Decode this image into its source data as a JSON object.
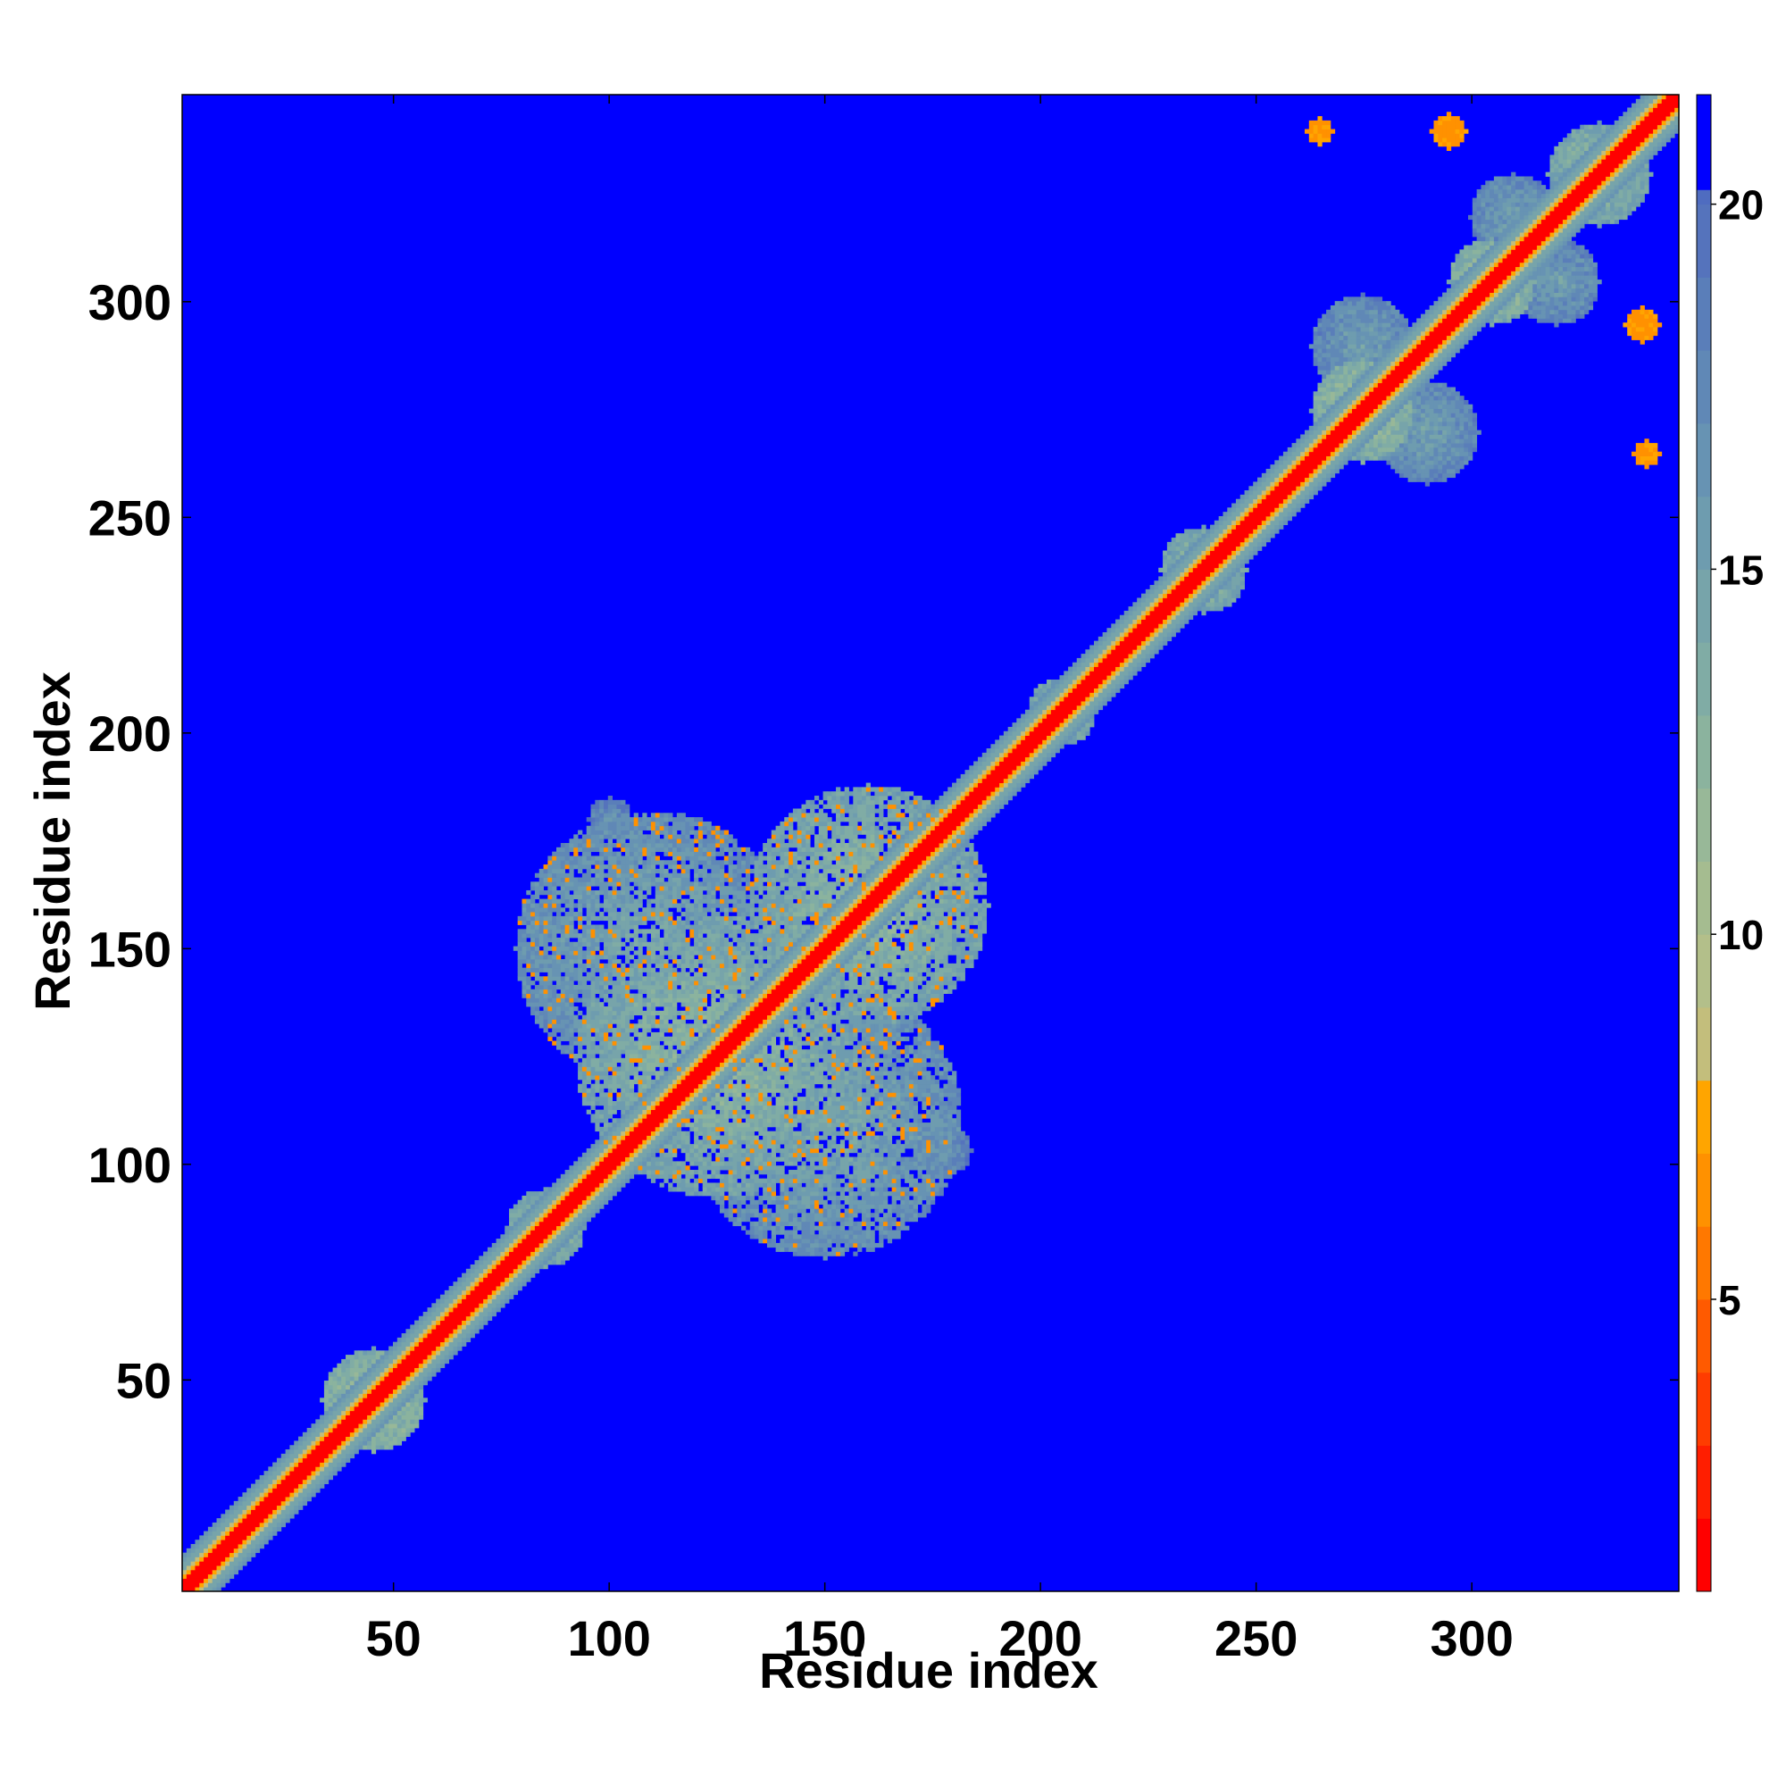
{
  "chart_data": {
    "type": "heatmap",
    "title": "",
    "xlabel": "Residue index",
    "ylabel": "Residue index",
    "xlim": [
      1,
      348
    ],
    "ylim": [
      1,
      348
    ],
    "xticks": [
      50,
      100,
      150,
      200,
      250,
      300
    ],
    "yticks": [
      50,
      100,
      150,
      200,
      250,
      300
    ],
    "grid": false,
    "colorbar": {
      "position": "right",
      "range": [
        1,
        21.5
      ],
      "ticks": [
        5,
        10,
        15,
        20
      ],
      "levels": [
        {
          "from": 1,
          "to": 2,
          "color": "#ff0000"
        },
        {
          "from": 2,
          "to": 3,
          "color": "#ff1e00"
        },
        {
          "from": 3,
          "to": 4,
          "color": "#ff3c00"
        },
        {
          "from": 4,
          "to": 5,
          "color": "#ff5a00"
        },
        {
          "from": 5,
          "to": 6,
          "color": "#ff7800"
        },
        {
          "from": 6,
          "to": 7,
          "color": "#ff9100"
        },
        {
          "from": 7,
          "to": 8,
          "color": "#ffa500"
        },
        {
          "from": 8,
          "to": 9,
          "color": "#c3be7c"
        },
        {
          "from": 9,
          "to": 10,
          "color": "#b3bf8a"
        },
        {
          "from": 10,
          "to": 11,
          "color": "#a5bc90"
        },
        {
          "from": 11,
          "to": 12,
          "color": "#98b898"
        },
        {
          "from": 12,
          "to": 13,
          "color": "#8bb39e"
        },
        {
          "from": 13,
          "to": 14,
          "color": "#80aca5"
        },
        {
          "from": 14,
          "to": 15,
          "color": "#77a4aa"
        },
        {
          "from": 15,
          "to": 16,
          "color": "#6e9caf"
        },
        {
          "from": 16,
          "to": 17,
          "color": "#6793b3"
        },
        {
          "from": 17,
          "to": 18,
          "color": "#6088b6"
        },
        {
          "from": 18,
          "to": 19,
          "color": "#5a7eb9"
        },
        {
          "from": 19,
          "to": 20,
          "color": "#5573bc"
        },
        {
          "from": 20,
          "to": 20.2,
          "color": "#4f6cc0"
        },
        {
          "from": 20.2,
          "to": 21.5,
          "color": "#0000ff"
        }
      ]
    },
    "background_value": 21,
    "diagonal": {
      "core_value": 1.5,
      "halo_value": 6,
      "core_halfwidth": 2,
      "halo_halfwidth": 4
    },
    "regions": [
      {
        "name": "diagonal-thickening",
        "center": [
          1,
          1
        ],
        "radius": 4,
        "value": 11
      },
      {
        "name": "diagonal-thickening",
        "center": [
          45,
          45
        ],
        "radius": 12,
        "value": 11
      },
      {
        "name": "diagonal-thickening",
        "center": [
          25,
          25
        ],
        "radius": 5,
        "value": 13
      },
      {
        "name": "diagonal-thickening",
        "center": [
          85,
          85
        ],
        "radius": 9,
        "value": 12
      },
      {
        "name": "globular-domain",
        "center": [
          125,
          125
        ],
        "radius": 33,
        "value": 12
      },
      {
        "name": "globular-domain",
        "center": [
          160,
          160
        ],
        "radius": 28,
        "value": 12
      },
      {
        "name": "globular-domain-offdiag",
        "center": [
          110,
          150
        ],
        "radius": 32,
        "value": 14
      },
      {
        "name": "globular-domain-offdiag",
        "center": [
          150,
          110
        ],
        "radius": 32,
        "value": 14
      },
      {
        "name": "contact-cluster",
        "center": [
          100,
          180
        ],
        "radius": 5,
        "value": 16
      },
      {
        "name": "contact-cluster",
        "center": [
          178,
          103
        ],
        "radius": 6,
        "value": 16
      },
      {
        "name": "diagonal-thickening",
        "center": [
          205,
          205
        ],
        "radius": 8,
        "value": 12
      },
      {
        "name": "diagonal-thickening",
        "center": [
          238,
          238
        ],
        "radius": 10,
        "value": 12
      },
      {
        "name": "diagonal-thickening",
        "center": [
          275,
          275
        ],
        "radius": 12,
        "value": 11
      },
      {
        "name": "diagonal-thickening",
        "center": [
          305,
          305
        ],
        "radius": 10,
        "value": 11
      },
      {
        "name": "diagonal-thickening",
        "center": [
          330,
          330
        ],
        "radius": 12,
        "value": 12
      },
      {
        "name": "cross-arm",
        "center": [
          275,
          290
        ],
        "radius": 12,
        "value": 15
      },
      {
        "name": "cross-arm",
        "center": [
          290,
          270
        ],
        "radius": 12,
        "value": 15
      },
      {
        "name": "cross-arm",
        "center": [
          310,
          320
        ],
        "radius": 10,
        "value": 15
      },
      {
        "name": "cross-arm",
        "center": [
          320,
          305
        ],
        "radius": 10,
        "value": 15
      },
      {
        "name": "long-range-contact",
        "center": [
          265,
          340
        ],
        "radius": 3,
        "value": 6
      },
      {
        "name": "long-range-contact",
        "center": [
          295,
          340
        ],
        "radius": 4,
        "value": 6
      },
      {
        "name": "long-range-contact",
        "center": [
          340,
          295
        ],
        "radius": 4,
        "value": 6
      },
      {
        "name": "long-range-contact",
        "center": [
          341,
          265
        ],
        "radius": 3,
        "value": 6
      }
    ]
  }
}
